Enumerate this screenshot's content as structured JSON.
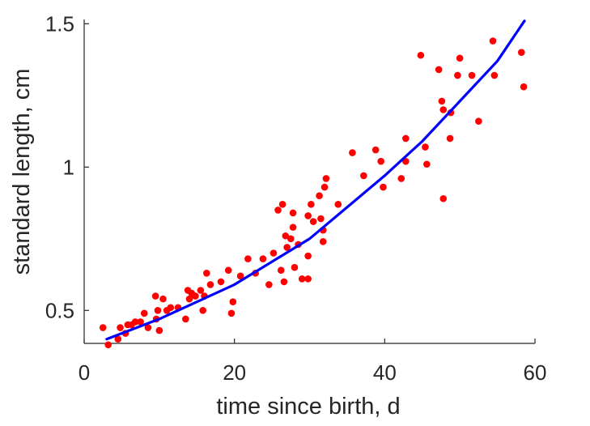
{
  "chart_data": {
    "type": "scatter",
    "xlabel": "time since birth, d",
    "ylabel": "standard length, cm",
    "xlim": [
      0,
      60
    ],
    "ylim": [
      0.385,
      1.515
    ],
    "x_ticks": [
      {
        "value": 0,
        "label": "0"
      },
      {
        "value": 20,
        "label": "20"
      },
      {
        "value": 40,
        "label": "40"
      },
      {
        "value": 60,
        "label": "60"
      }
    ],
    "y_ticks": [
      {
        "value": 0.5,
        "label": "0.5"
      },
      {
        "value": 1.0,
        "label": "1"
      },
      {
        "value": 1.5,
        "label": "1.5"
      }
    ],
    "grid": false,
    "box": false,
    "colors": {
      "points": "#ff0000",
      "fit_line": "#0000ff",
      "axis": "#262626"
    },
    "series": [
      {
        "kind": "scatter",
        "marker": "filled-circle",
        "points": [
          [
            2.5,
            0.44
          ],
          [
            3.2,
            0.38
          ],
          [
            4.5,
            0.4
          ],
          [
            4.8,
            0.44
          ],
          [
            5.5,
            0.42
          ],
          [
            5.8,
            0.45
          ],
          [
            6.3,
            0.45
          ],
          [
            6.8,
            0.46
          ],
          [
            7.5,
            0.46
          ],
          [
            8.0,
            0.49
          ],
          [
            8.5,
            0.44
          ],
          [
            9.5,
            0.55
          ],
          [
            9.6,
            0.47
          ],
          [
            9.8,
            0.5
          ],
          [
            10.0,
            0.43
          ],
          [
            10.5,
            0.54
          ],
          [
            11.0,
            0.5
          ],
          [
            11.5,
            0.51
          ],
          [
            12.5,
            0.51
          ],
          [
            13.5,
            0.47
          ],
          [
            13.8,
            0.57
          ],
          [
            14.0,
            0.54
          ],
          [
            14.3,
            0.56
          ],
          [
            14.8,
            0.55
          ],
          [
            15.5,
            0.57
          ],
          [
            15.8,
            0.5
          ],
          [
            16.0,
            0.55
          ],
          [
            16.3,
            0.63
          ],
          [
            16.8,
            0.59
          ],
          [
            18.2,
            0.6
          ],
          [
            19.2,
            0.64
          ],
          [
            19.6,
            0.49
          ],
          [
            19.8,
            0.53
          ],
          [
            20.8,
            0.62
          ],
          [
            21.8,
            0.68
          ],
          [
            22.8,
            0.63
          ],
          [
            23.8,
            0.68
          ],
          [
            24.6,
            0.59
          ],
          [
            25.2,
            0.7
          ],
          [
            25.8,
            0.85
          ],
          [
            26.2,
            0.64
          ],
          [
            26.4,
            0.87
          ],
          [
            26.6,
            0.6
          ],
          [
            26.8,
            0.76
          ],
          [
            27.0,
            0.72
          ],
          [
            27.5,
            0.75
          ],
          [
            27.8,
            0.79
          ],
          [
            27.8,
            0.84
          ],
          [
            28.0,
            0.65
          ],
          [
            28.5,
            0.73
          ],
          [
            29.0,
            0.61
          ],
          [
            29.8,
            0.61
          ],
          [
            29.8,
            0.83
          ],
          [
            29.8,
            0.69
          ],
          [
            30.2,
            0.87
          ],
          [
            30.5,
            0.81
          ],
          [
            31.3,
            0.9
          ],
          [
            31.5,
            0.82
          ],
          [
            31.8,
            0.78
          ],
          [
            31.8,
            0.74
          ],
          [
            32.0,
            0.93
          ],
          [
            32.2,
            0.96
          ],
          [
            33.8,
            0.87
          ],
          [
            35.7,
            1.05
          ],
          [
            37.2,
            0.97
          ],
          [
            38.8,
            1.06
          ],
          [
            39.5,
            1.02
          ],
          [
            39.8,
            0.93
          ],
          [
            42.2,
            0.96
          ],
          [
            42.8,
            1.02
          ],
          [
            42.8,
            1.1
          ],
          [
            44.8,
            1.39
          ],
          [
            45.4,
            1.07
          ],
          [
            45.6,
            1.01
          ],
          [
            47.2,
            1.34
          ],
          [
            47.6,
            1.23
          ],
          [
            47.8,
            0.89
          ],
          [
            47.8,
            1.2
          ],
          [
            48.7,
            1.1
          ],
          [
            48.8,
            1.19
          ],
          [
            49.7,
            1.32
          ],
          [
            50.0,
            1.38
          ],
          [
            51.6,
            1.32
          ],
          [
            52.5,
            1.16
          ],
          [
            54.4,
            1.44
          ],
          [
            54.6,
            1.32
          ],
          [
            58.2,
            1.4
          ],
          [
            58.5,
            1.28
          ]
        ]
      },
      {
        "kind": "line",
        "points": [
          [
            3,
            0.4
          ],
          [
            5,
            0.42
          ],
          [
            10,
            0.47
          ],
          [
            15,
            0.53
          ],
          [
            20,
            0.59
          ],
          [
            25,
            0.67
          ],
          [
            30,
            0.75
          ],
          [
            35,
            0.86
          ],
          [
            40,
            0.97
          ],
          [
            45,
            1.09
          ],
          [
            50,
            1.23
          ],
          [
            55,
            1.37
          ],
          [
            58.6,
            1.51
          ]
        ]
      }
    ]
  }
}
